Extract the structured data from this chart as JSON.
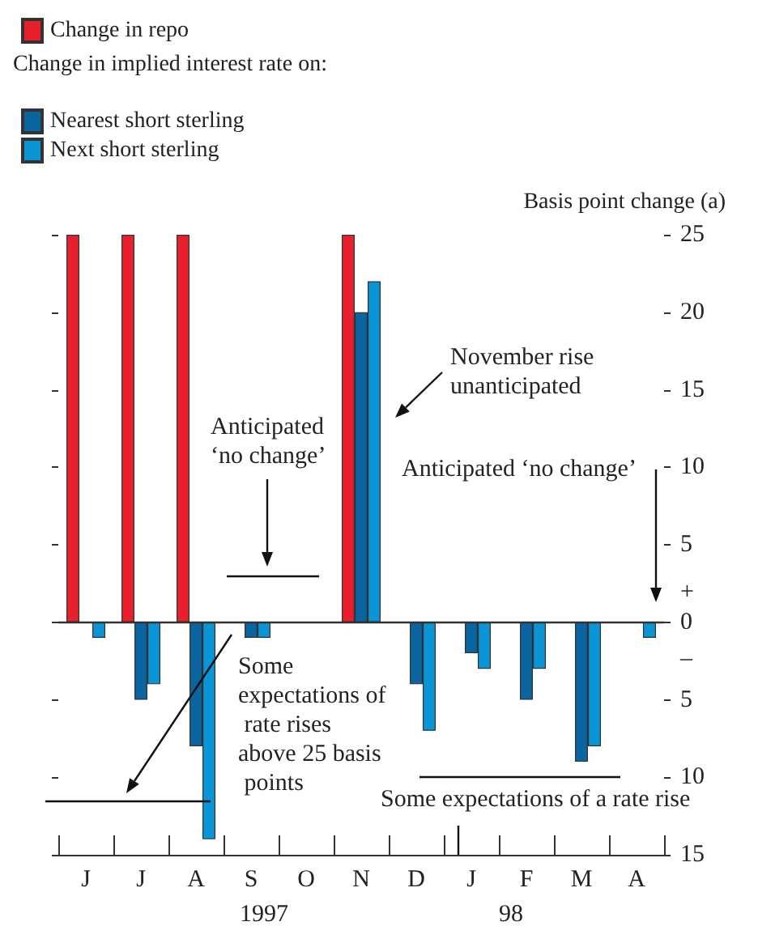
{
  "chart_data": {
    "type": "bar",
    "ylabel": "Basis point change (a)",
    "legend_title": "Change in implied interest rate on:",
    "legend": "top left",
    "grid": false,
    "categories": [
      "J",
      "J",
      "A",
      "S",
      "O",
      "N",
      "D",
      "J",
      "F",
      "M",
      "A"
    ],
    "series": [
      {
        "name": "Change in repo",
        "color": "#e8202e",
        "values": [
          25,
          25,
          25,
          null,
          null,
          25,
          null,
          null,
          null,
          null,
          null
        ]
      },
      {
        "name": "Nearest short sterling",
        "color": "#0a64a0",
        "values": [
          null,
          -5,
          -8,
          -1,
          null,
          20,
          -4,
          -2,
          -5,
          -9,
          null
        ]
      },
      {
        "name": "Next short sterling",
        "color": "#0a96d6",
        "values": [
          -1,
          -4,
          -14,
          -1,
          null,
          22,
          -7,
          -3,
          -3,
          -8,
          -1
        ]
      }
    ],
    "ylim": [
      -15,
      25
    ],
    "yticks": [
      {
        "value": -15,
        "label": "15"
      },
      {
        "value": -10,
        "label": "10"
      },
      {
        "value": -5,
        "label": "5"
      },
      0,
      5,
      10,
      15,
      20,
      25
    ],
    "ref_lines": [
      {
        "axis": "y",
        "value": 0,
        "label": null,
        "color": "#333333"
      }
    ],
    "annotations": [
      "Anticipated ‘no change’",
      "November rise unanticipated",
      "Anticipated ‘no change’",
      "Some expectations of rate rises above 25 basis points",
      "Some expectations of a rate rise",
      "+",
      "–",
      "1997",
      "98"
    ]
  }
}
